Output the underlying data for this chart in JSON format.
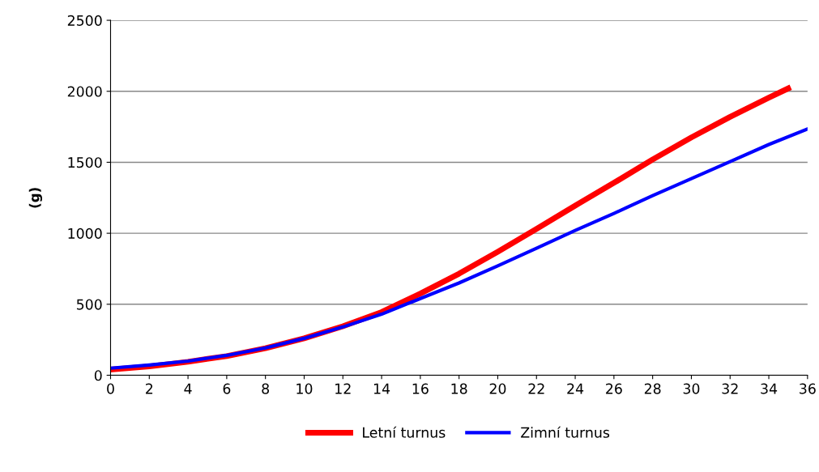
{
  "chart_data": {
    "type": "line",
    "ylabel": "(g)",
    "xlim": [
      0,
      36
    ],
    "ylim": [
      0,
      2500
    ],
    "xticks": [
      0,
      2,
      4,
      6,
      8,
      10,
      12,
      14,
      16,
      18,
      20,
      22,
      24,
      26,
      28,
      30,
      32,
      34,
      36
    ],
    "yticks": [
      0,
      500,
      1000,
      1500,
      2000,
      2500
    ],
    "grid": "y",
    "legend": "bottom",
    "marker": "none",
    "line_style": "solid",
    "series": [
      {
        "name": "Letní turnus",
        "color": "#ff0000",
        "x": [
          0,
          2,
          4,
          6,
          8,
          10,
          12,
          14,
          16,
          18,
          20,
          22,
          24,
          26,
          28,
          30,
          32,
          34,
          35
        ],
        "values": [
          40,
          62,
          95,
          135,
          190,
          260,
          345,
          445,
          575,
          715,
          870,
          1030,
          1195,
          1355,
          1520,
          1675,
          1820,
          1955,
          2020
        ]
      },
      {
        "name": "Zimní turnus",
        "color": "#0000ff",
        "x": [
          0,
          2,
          4,
          6,
          8,
          10,
          12,
          14,
          16,
          18,
          20,
          22,
          24,
          26,
          28,
          30,
          32,
          34,
          36
        ],
        "values": [
          50,
          72,
          100,
          140,
          192,
          260,
          340,
          430,
          540,
          650,
          770,
          895,
          1020,
          1140,
          1265,
          1385,
          1505,
          1625,
          1735
        ]
      }
    ]
  }
}
